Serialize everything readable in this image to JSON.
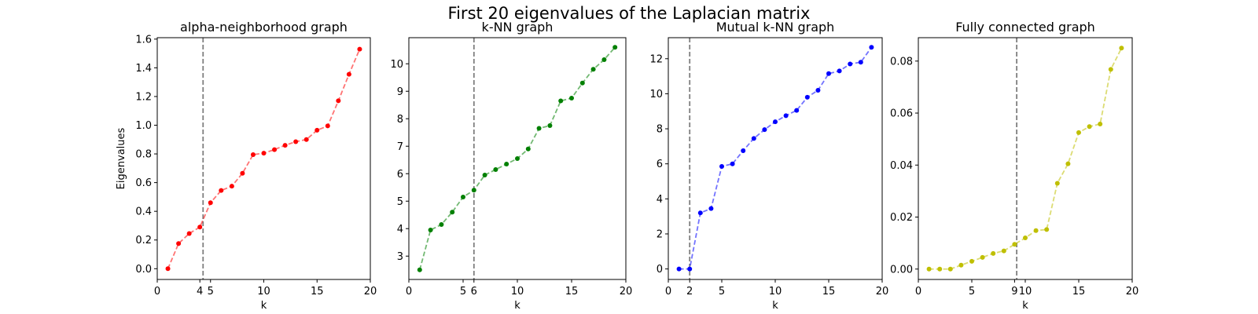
{
  "figure": {
    "title": "First 20 eigenvalues of the Laplacian matrix"
  },
  "chart_data": [
    {
      "type": "line",
      "title": "alpha-neighborhood graph",
      "xlabel": "k",
      "ylabel": "Eigenvalues",
      "xlim": [
        0,
        20
      ],
      "ylim": [
        -0.075,
        1.61
      ],
      "xticks": [
        0,
        4,
        5,
        10,
        15,
        20
      ],
      "yticks": [
        0.0,
        0.2,
        0.4,
        0.6,
        0.8,
        1.0,
        1.2,
        1.4,
        1.6
      ],
      "ytick_decimals": 1,
      "color": "#ff0000",
      "vline": 4.3,
      "x": [
        1,
        2,
        3,
        4,
        5,
        6,
        7,
        8,
        9,
        10,
        11,
        12,
        13,
        14,
        15,
        16,
        17,
        18,
        19
      ],
      "values": [
        0.0,
        0.175,
        0.245,
        0.29,
        0.46,
        0.545,
        0.575,
        0.665,
        0.795,
        0.805,
        0.83,
        0.86,
        0.885,
        0.9,
        0.965,
        0.995,
        1.17,
        1.355,
        1.53
      ]
    },
    {
      "type": "line",
      "title": "k-NN graph",
      "xlabel": "k",
      "ylabel": "",
      "xlim": [
        0,
        20
      ],
      "ylim": [
        2.15,
        10.95
      ],
      "xticks": [
        0,
        5,
        6,
        10,
        15,
        20
      ],
      "yticks": [
        3,
        4,
        5,
        6,
        7,
        8,
        9,
        10
      ],
      "ytick_decimals": 0,
      "color": "#008000",
      "vline": 6,
      "x": [
        1,
        2,
        3,
        4,
        5,
        6,
        7,
        8,
        9,
        10,
        11,
        12,
        13,
        14,
        15,
        16,
        17,
        18,
        19
      ],
      "values": [
        2.5,
        3.95,
        4.15,
        4.6,
        5.15,
        5.4,
        5.95,
        6.15,
        6.35,
        6.55,
        6.9,
        7.65,
        7.75,
        8.65,
        8.75,
        9.3,
        9.8,
        10.15,
        10.6
      ]
    },
    {
      "type": "line",
      "title": "Mutual k-NN graph",
      "xlabel": "k",
      "ylabel": "",
      "xlim": [
        0,
        20
      ],
      "ylim": [
        -0.6,
        13.2
      ],
      "xticks": [
        0,
        2,
        5,
        10,
        15,
        20
      ],
      "yticks": [
        0,
        2,
        4,
        6,
        8,
        10,
        12
      ],
      "ytick_decimals": 0,
      "color": "#0000ff",
      "vline": 2,
      "x": [
        1,
        2,
        3,
        4,
        5,
        6,
        7,
        8,
        9,
        10,
        11,
        12,
        13,
        14,
        15,
        16,
        17,
        18,
        19
      ],
      "values": [
        0.0,
        0.0,
        3.2,
        3.45,
        5.85,
        6.0,
        6.75,
        7.45,
        7.95,
        8.4,
        8.75,
        9.05,
        9.8,
        10.2,
        11.15,
        11.3,
        11.7,
        11.8,
        12.65
      ]
    },
    {
      "type": "line",
      "title": "Fully connected graph",
      "xlabel": "k",
      "ylabel": "",
      "xlim": [
        0,
        20
      ],
      "ylim": [
        -0.004,
        0.089
      ],
      "xticks": [
        0,
        5,
        9,
        10,
        15,
        20
      ],
      "yticks": [
        0.0,
        0.02,
        0.04,
        0.06,
        0.08
      ],
      "ytick_decimals": 2,
      "color": "#bfbf00",
      "vline": 9.2,
      "x": [
        1,
        2,
        3,
        4,
        5,
        6,
        7,
        8,
        9,
        10,
        11,
        12,
        13,
        14,
        15,
        16,
        17,
        18,
        19
      ],
      "values": [
        0.0,
        0.0,
        0.0,
        0.0015,
        0.003,
        0.0045,
        0.006,
        0.007,
        0.0095,
        0.012,
        0.0148,
        0.0152,
        0.033,
        0.0405,
        0.0525,
        0.0548,
        0.0558,
        0.0768,
        0.085
      ]
    }
  ]
}
